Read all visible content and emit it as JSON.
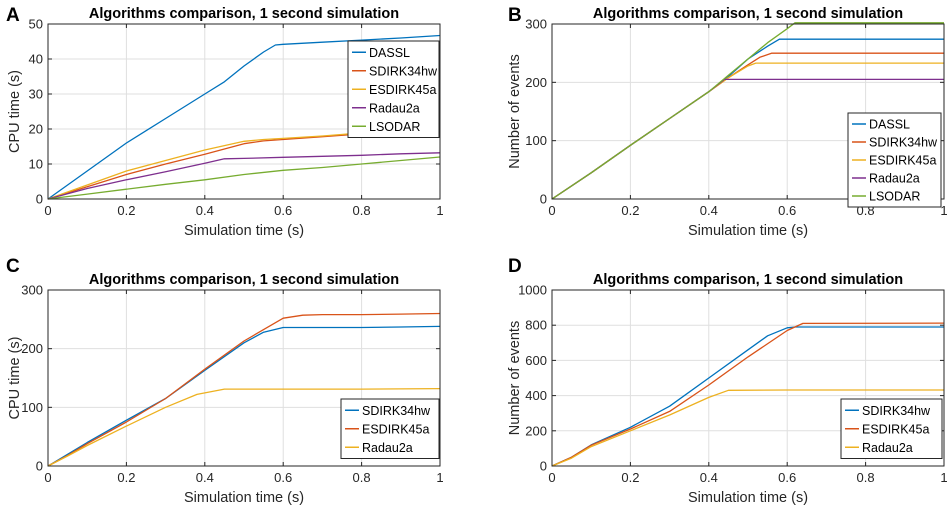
{
  "colors": {
    "blue": "#0072BD",
    "orange": "#D95319",
    "yellow": "#EDB120",
    "purple": "#7E2F8E",
    "green": "#77AC30"
  },
  "chart_data": [
    {
      "id": "A",
      "panel_label": "A",
      "type": "line",
      "title": "Algorithms comparison, 1 second simulation",
      "xlabel": "Simulation time (s)",
      "ylabel": "CPU time (s)",
      "xlim": [
        0,
        1
      ],
      "ylim": [
        0,
        50
      ],
      "xticks": [
        0,
        0.2,
        0.4,
        0.6,
        0.8,
        1
      ],
      "xtick_labels": [
        "0",
        "0.2",
        "0.4",
        "0.6",
        "0.8",
        "1"
      ],
      "yticks": [
        0,
        10,
        20,
        30,
        40,
        50
      ],
      "ytick_labels": [
        "0",
        "10",
        "20",
        "30",
        "40",
        "50"
      ],
      "grid": true,
      "legend_position": "top-right",
      "series": [
        {
          "name": "DASSL",
          "color": "blue",
          "x": [
            0,
            0.1,
            0.2,
            0.3,
            0.4,
            0.45,
            0.5,
            0.55,
            0.58,
            0.6,
            0.7,
            0.8,
            0.9,
            1.0
          ],
          "y": [
            0,
            8,
            16,
            23,
            30,
            33.5,
            38,
            42,
            44,
            44.2,
            44.8,
            45.4,
            46,
            46.7
          ]
        },
        {
          "name": "SDIRK34hw",
          "color": "orange",
          "x": [
            0,
            0.1,
            0.2,
            0.3,
            0.4,
            0.5,
            0.55,
            0.6,
            0.7,
            0.8,
            0.9,
            1.0
          ],
          "y": [
            0,
            3.5,
            7,
            10,
            12.8,
            15.8,
            16.6,
            17,
            17.8,
            18.6,
            19.4,
            20.3
          ]
        },
        {
          "name": "ESDIRK45a",
          "color": "yellow",
          "x": [
            0,
            0.1,
            0.2,
            0.3,
            0.4,
            0.5,
            0.55,
            0.6,
            0.7,
            0.8,
            0.9,
            1.0
          ],
          "y": [
            0,
            4,
            8,
            11,
            14,
            16.5,
            17,
            17.3,
            18,
            18.9,
            19.7,
            20.5
          ]
        },
        {
          "name": "Radau2a",
          "color": "purple",
          "x": [
            0,
            0.1,
            0.2,
            0.3,
            0.4,
            0.45,
            0.5,
            0.6,
            0.7,
            0.8,
            0.9,
            1.0
          ],
          "y": [
            0,
            3,
            5.5,
            7.8,
            10.2,
            11.5,
            11.6,
            11.9,
            12.2,
            12.5,
            12.9,
            13.2
          ]
        },
        {
          "name": "LSODAR",
          "color": "green",
          "x": [
            0,
            0.1,
            0.2,
            0.3,
            0.4,
            0.5,
            0.6,
            0.7,
            0.8,
            0.9,
            1.0
          ],
          "y": [
            0,
            1.4,
            2.8,
            4.2,
            5.5,
            7,
            8.2,
            9,
            10,
            11,
            12
          ]
        }
      ]
    },
    {
      "id": "B",
      "panel_label": "B",
      "type": "line",
      "title": "Algorithms comparison, 1 second simulation",
      "xlabel": "Simulation time (s)",
      "ylabel": "Number of events",
      "xlim": [
        0,
        1
      ],
      "ylim": [
        0,
        300
      ],
      "xticks": [
        0,
        0.2,
        0.4,
        0.6,
        0.8,
        1
      ],
      "xtick_labels": [
        "0",
        "0.2",
        "0.4",
        "0.6",
        "0.8",
        "1"
      ],
      "yticks": [
        0,
        100,
        200,
        300
      ],
      "ytick_labels": [
        "0",
        "100",
        "200",
        "300"
      ],
      "grid": true,
      "legend_position": "bottom-right",
      "series": [
        {
          "name": "DASSL",
          "color": "blue",
          "x": [
            0,
            0.1,
            0.2,
            0.3,
            0.4,
            0.45,
            0.5,
            0.55,
            0.58,
            1.0
          ],
          "y": [
            0,
            45,
            92,
            138,
            184,
            210,
            240,
            262,
            274,
            274
          ]
        },
        {
          "name": "SDIRK34hw",
          "color": "orange",
          "x": [
            0,
            0.1,
            0.2,
            0.3,
            0.4,
            0.45,
            0.5,
            0.53,
            0.56,
            1.0
          ],
          "y": [
            0,
            45,
            92,
            138,
            184,
            208,
            230,
            243,
            250,
            250
          ]
        },
        {
          "name": "ESDIRK45a",
          "color": "yellow",
          "x": [
            0,
            0.1,
            0.2,
            0.3,
            0.4,
            0.45,
            0.5,
            0.52,
            1.0
          ],
          "y": [
            0,
            45,
            92,
            138,
            184,
            208,
            228,
            233,
            233
          ]
        },
        {
          "name": "Radau2a",
          "color": "purple",
          "x": [
            0,
            0.1,
            0.2,
            0.3,
            0.4,
            0.44,
            1.0
          ],
          "y": [
            0,
            45,
            92,
            138,
            184,
            205,
            205
          ]
        },
        {
          "name": "LSODAR",
          "color": "green",
          "x": [
            0,
            0.1,
            0.2,
            0.3,
            0.4,
            0.45,
            0.5,
            0.55,
            0.6,
            0.62,
            1.0
          ],
          "y": [
            0,
            45,
            92,
            138,
            184,
            212,
            240,
            268,
            292,
            302,
            302
          ]
        }
      ]
    },
    {
      "id": "C",
      "panel_label": "C",
      "type": "line",
      "title": "Algorithms comparison, 1 second simulation",
      "xlabel": "Simulation time (s)",
      "ylabel": "CPU time (s)",
      "xlim": [
        0,
        1
      ],
      "ylim": [
        0,
        300
      ],
      "xticks": [
        0,
        0.2,
        0.4,
        0.6,
        0.8,
        1
      ],
      "xtick_labels": [
        "0",
        "0.2",
        "0.4",
        "0.6",
        "0.8",
        "1"
      ],
      "yticks": [
        0,
        100,
        200,
        300
      ],
      "ytick_labels": [
        "0",
        "100",
        "200",
        "300"
      ],
      "grid": true,
      "legend_position": "bottom-right",
      "series": [
        {
          "name": "SDIRK34hw",
          "color": "blue",
          "x": [
            0,
            0.05,
            0.1,
            0.2,
            0.3,
            0.4,
            0.5,
            0.55,
            0.6,
            0.62,
            0.7,
            0.8,
            0.9,
            1.0
          ],
          "y": [
            0,
            20,
            40,
            78,
            115,
            163,
            210,
            228,
            236,
            236,
            236,
            236,
            237,
            238
          ]
        },
        {
          "name": "ESDIRK45a",
          "color": "orange",
          "x": [
            0,
            0.05,
            0.1,
            0.2,
            0.3,
            0.4,
            0.5,
            0.6,
            0.65,
            0.7,
            0.8,
            0.9,
            1.0
          ],
          "y": [
            0,
            18,
            38,
            75,
            115,
            165,
            213,
            252,
            257,
            258,
            258,
            259,
            260
          ]
        },
        {
          "name": "Radau2a",
          "color": "yellow",
          "x": [
            0,
            0.05,
            0.1,
            0.2,
            0.3,
            0.38,
            0.45,
            0.6,
            0.8,
            1.0
          ],
          "y": [
            0,
            17,
            35,
            68,
            100,
            122,
            131,
            131,
            131,
            132
          ]
        }
      ]
    },
    {
      "id": "D",
      "panel_label": "D",
      "type": "line",
      "title": "Algorithms comparison, 1 second simulation",
      "xlabel": "Simulation time (s)",
      "ylabel": "Number of events",
      "xlim": [
        0,
        1
      ],
      "ylim": [
        0,
        1000
      ],
      "xticks": [
        0,
        0.2,
        0.4,
        0.6,
        0.8,
        1
      ],
      "xtick_labels": [
        "0",
        "0.2",
        "0.4",
        "0.6",
        "0.8",
        "1"
      ],
      "yticks": [
        0,
        200,
        400,
        600,
        800,
        1000
      ],
      "ytick_labels": [
        "0",
        "200",
        "400",
        "600",
        "800",
        "1000"
      ],
      "grid": true,
      "legend_position": "bottom-right",
      "series": [
        {
          "name": "SDIRK34hw",
          "color": "blue",
          "x": [
            0,
            0.05,
            0.1,
            0.2,
            0.3,
            0.4,
            0.5,
            0.55,
            0.6,
            0.62,
            1.0
          ],
          "y": [
            0,
            50,
            120,
            220,
            340,
            500,
            660,
            740,
            785,
            790,
            790
          ]
        },
        {
          "name": "ESDIRK45a",
          "color": "orange",
          "x": [
            0,
            0.05,
            0.1,
            0.2,
            0.3,
            0.4,
            0.5,
            0.6,
            0.64,
            1.0
          ],
          "y": [
            0,
            50,
            118,
            210,
            310,
            460,
            620,
            770,
            810,
            812
          ]
        },
        {
          "name": "Radau2a",
          "color": "yellow",
          "x": [
            0,
            0.05,
            0.1,
            0.2,
            0.3,
            0.4,
            0.45,
            0.6,
            0.8,
            1.0
          ],
          "y": [
            0,
            45,
            110,
            200,
            290,
            390,
            430,
            432,
            432,
            432
          ]
        }
      ]
    }
  ]
}
